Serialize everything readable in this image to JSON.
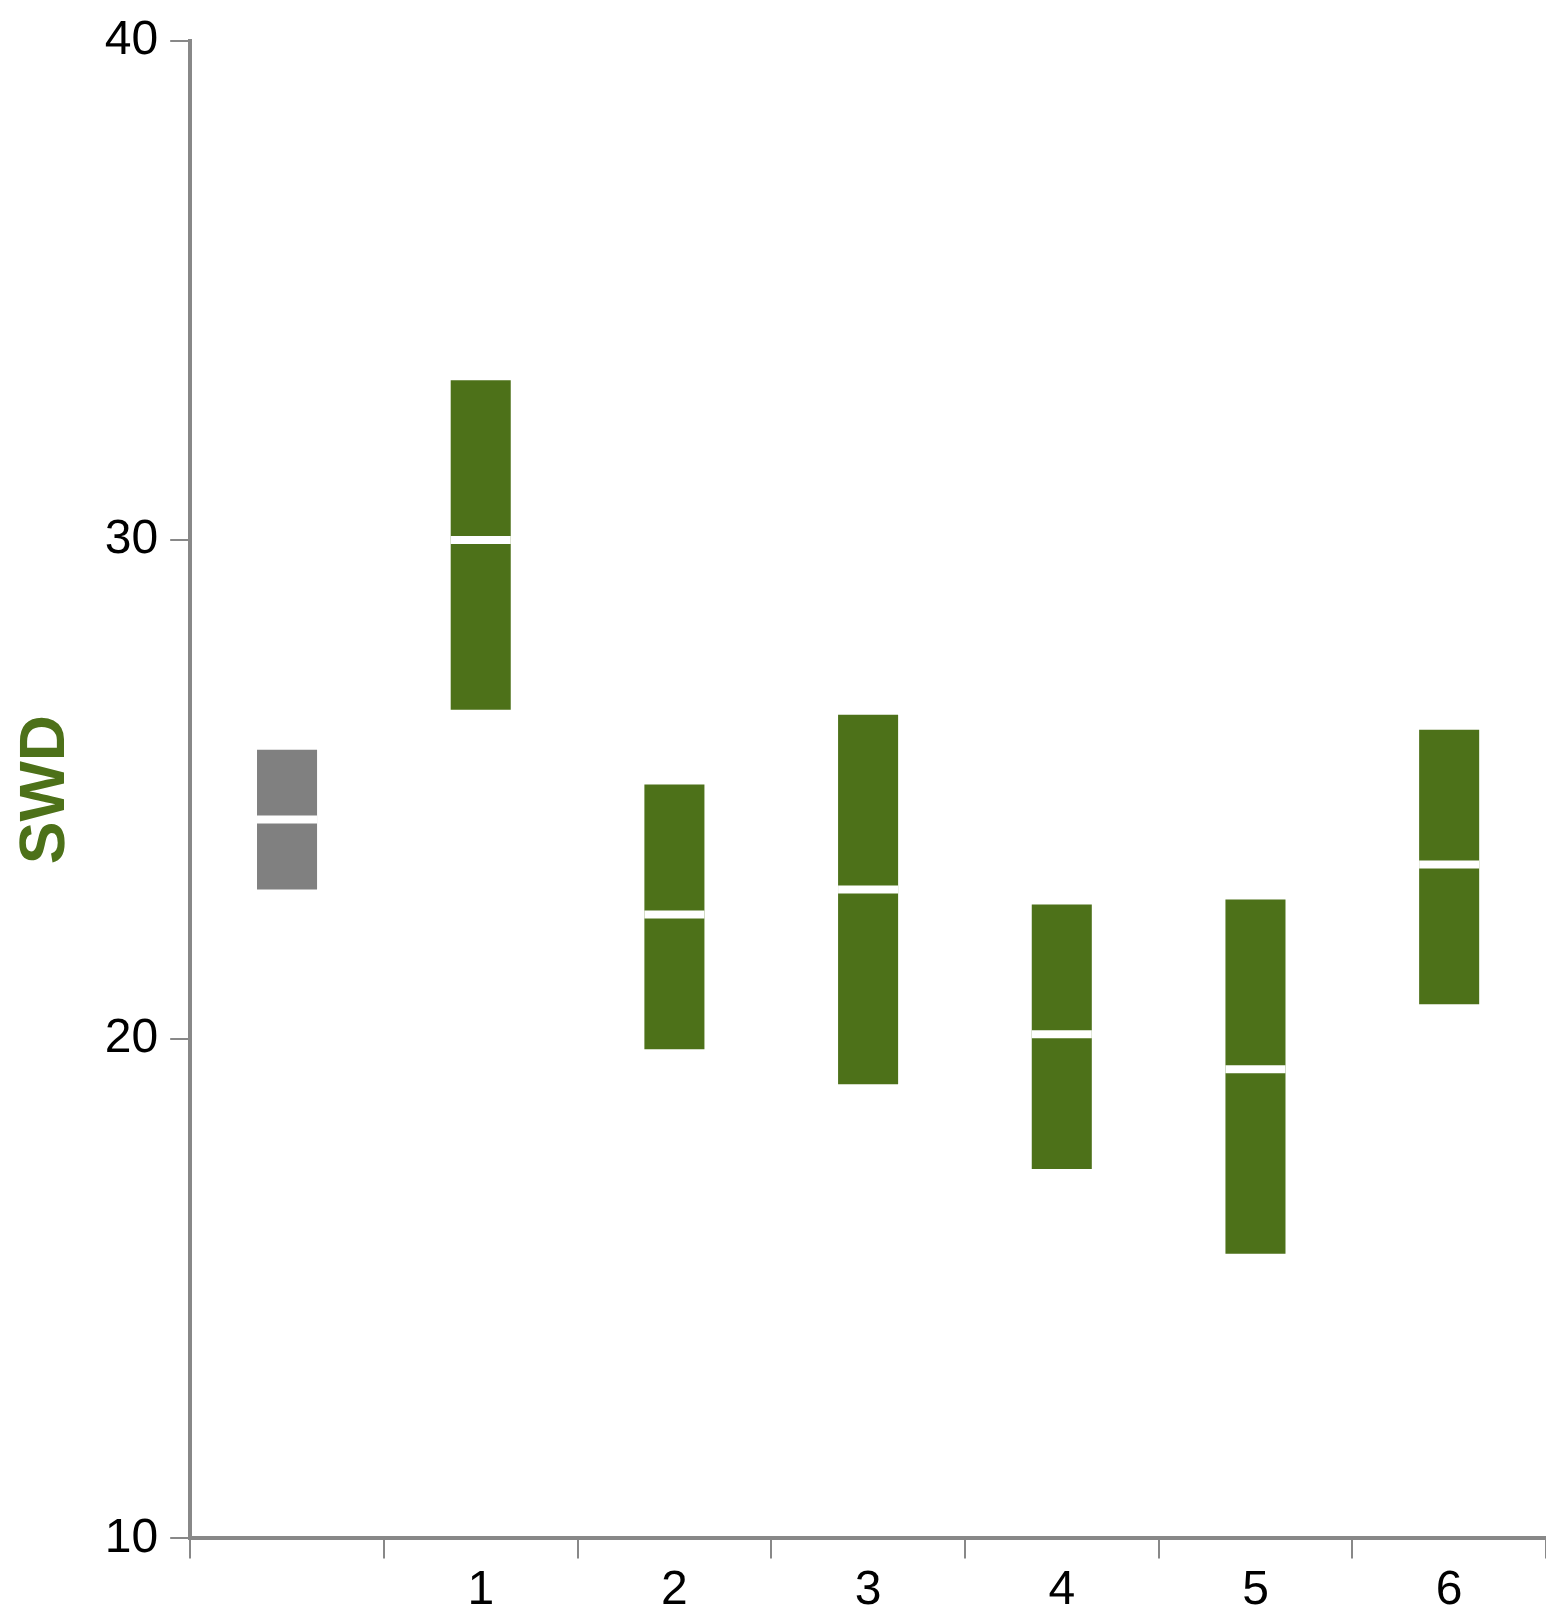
{
  "chart_data": {
    "type": "box",
    "ylabel": "SWD",
    "categories": [
      null,
      "1",
      "2",
      "3",
      "4",
      "5",
      "6"
    ],
    "colors": [
      "#808080",
      "#4d7119",
      "#4d7119",
      "#4d7119",
      "#4d7119",
      "#4d7119",
      "#4d7119"
    ],
    "boxes": [
      {
        "low": 23.0,
        "q1": 23.0,
        "median": 24.4,
        "q3": 25.8,
        "high": 25.8
      },
      {
        "low": 26.6,
        "q1": 26.6,
        "median": 30.0,
        "q3": 33.2,
        "high": 33.2
      },
      {
        "low": 19.8,
        "q1": 19.8,
        "median": 22.5,
        "q3": 25.1,
        "high": 25.1
      },
      {
        "low": 19.1,
        "q1": 19.1,
        "median": 23.0,
        "q3": 26.5,
        "high": 26.5
      },
      {
        "low": 17.4,
        "q1": 17.4,
        "median": 20.1,
        "q3": 22.7,
        "high": 22.7
      },
      {
        "low": 15.7,
        "q1": 15.7,
        "median": 19.4,
        "q3": 22.8,
        "high": 22.8
      },
      {
        "low": 20.7,
        "q1": 20.7,
        "median": 23.5,
        "q3": 26.2,
        "high": 26.2
      }
    ],
    "ylim": [
      10,
      40
    ],
    "yticks": [
      10,
      20,
      30,
      40
    ],
    "grid": false,
    "legend": false
  }
}
